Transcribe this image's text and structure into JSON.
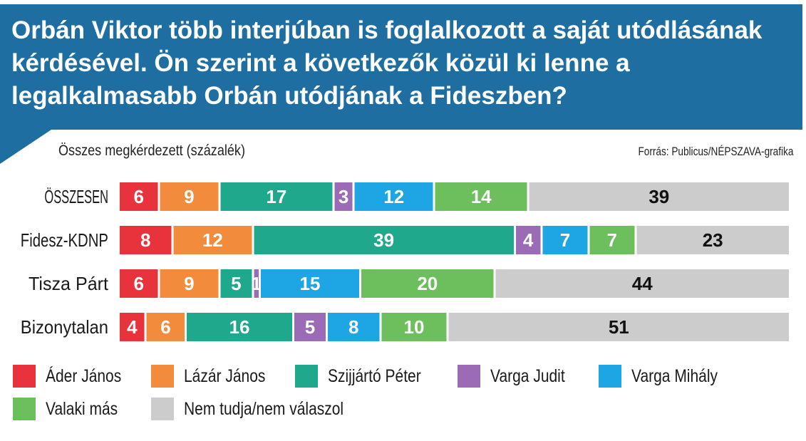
{
  "title": "Orbán Viktor több interjúban is foglalkozott a saját utódlásának kérdésével. Ön szerint a következők közül ki lenne a legalkalmasabb Orbán utódjának a Fideszben?",
  "subtitle": "Összes megkérdezett (százalék)",
  "source": "Forrás: Publicus/NÉPSZAVA-grafika",
  "chart_data": {
    "type": "bar",
    "orientation": "horizontal-stacked",
    "unit": "%",
    "categories": [
      "ÖSSZESEN",
      "Fidesz-KDNP",
      "Tisza Párt",
      "Bizonytalan"
    ],
    "series": [
      {
        "name": "Áder János",
        "color": "#e8333c",
        "values": [
          6,
          8,
          6,
          4
        ]
      },
      {
        "name": "Lázár János",
        "color": "#f38b3c",
        "values": [
          9,
          12,
          9,
          6
        ]
      },
      {
        "name": "Szijjártó Péter",
        "color": "#1fa88c",
        "values": [
          17,
          39,
          5,
          16
        ]
      },
      {
        "name": "Varga Judit",
        "color": "#9b6bb5",
        "values": [
          3,
          4,
          1,
          5
        ]
      },
      {
        "name": "Varga Mihály",
        "color": "#1da6e3",
        "values": [
          12,
          7,
          15,
          8
        ]
      },
      {
        "name": "Valaki más",
        "color": "#6cbf5c",
        "values": [
          14,
          7,
          20,
          10
        ]
      },
      {
        "name": "Nem tudja/nem válaszol",
        "color": "#cccccc",
        "values": [
          39,
          23,
          44,
          51
        ]
      }
    ],
    "legend_position": "bottom",
    "grid": false
  }
}
